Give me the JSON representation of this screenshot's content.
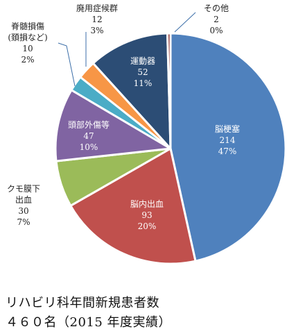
{
  "chart_data": {
    "type": "pie",
    "slices": [
      {
        "label": [
          "脳梗塞"
        ],
        "value": 214,
        "count_text": "214",
        "percent_text": "47%",
        "color": "#4f81bd"
      },
      {
        "label": [
          "脳内出血"
        ],
        "value": 93,
        "count_text": "93",
        "percent_text": "20%",
        "color": "#c0504d"
      },
      {
        "label": [
          "クモ膜下",
          "出血"
        ],
        "value": 30,
        "count_text": "30",
        "percent_text": "7%",
        "color": "#9bbb59"
      },
      {
        "label": [
          "頭部外傷等"
        ],
        "value": 47,
        "count_text": "47",
        "percent_text": "10%",
        "color": "#8064a2"
      },
      {
        "label": [
          "脊髄損傷",
          "(頚損など)"
        ],
        "value": 10,
        "count_text": "10",
        "percent_text": "2%",
        "color": "#4bacc6"
      },
      {
        "label": [
          "廃用症候群"
        ],
        "value": 12,
        "count_text": "12",
        "percent_text": "3%",
        "color": "#f79646"
      },
      {
        "label": [
          "運動器"
        ],
        "value": 52,
        "count_text": "52",
        "percent_text": "11%",
        "color": "#2c4d75"
      },
      {
        "label": [
          "その他"
        ],
        "value": 2,
        "count_text": "2",
        "percent_text": "0%",
        "color": "#8c2e2b"
      }
    ]
  },
  "caption": {
    "line1": "リハビリ科年間新規患者数",
    "line2": "４６０名（2015 年度実績）"
  }
}
